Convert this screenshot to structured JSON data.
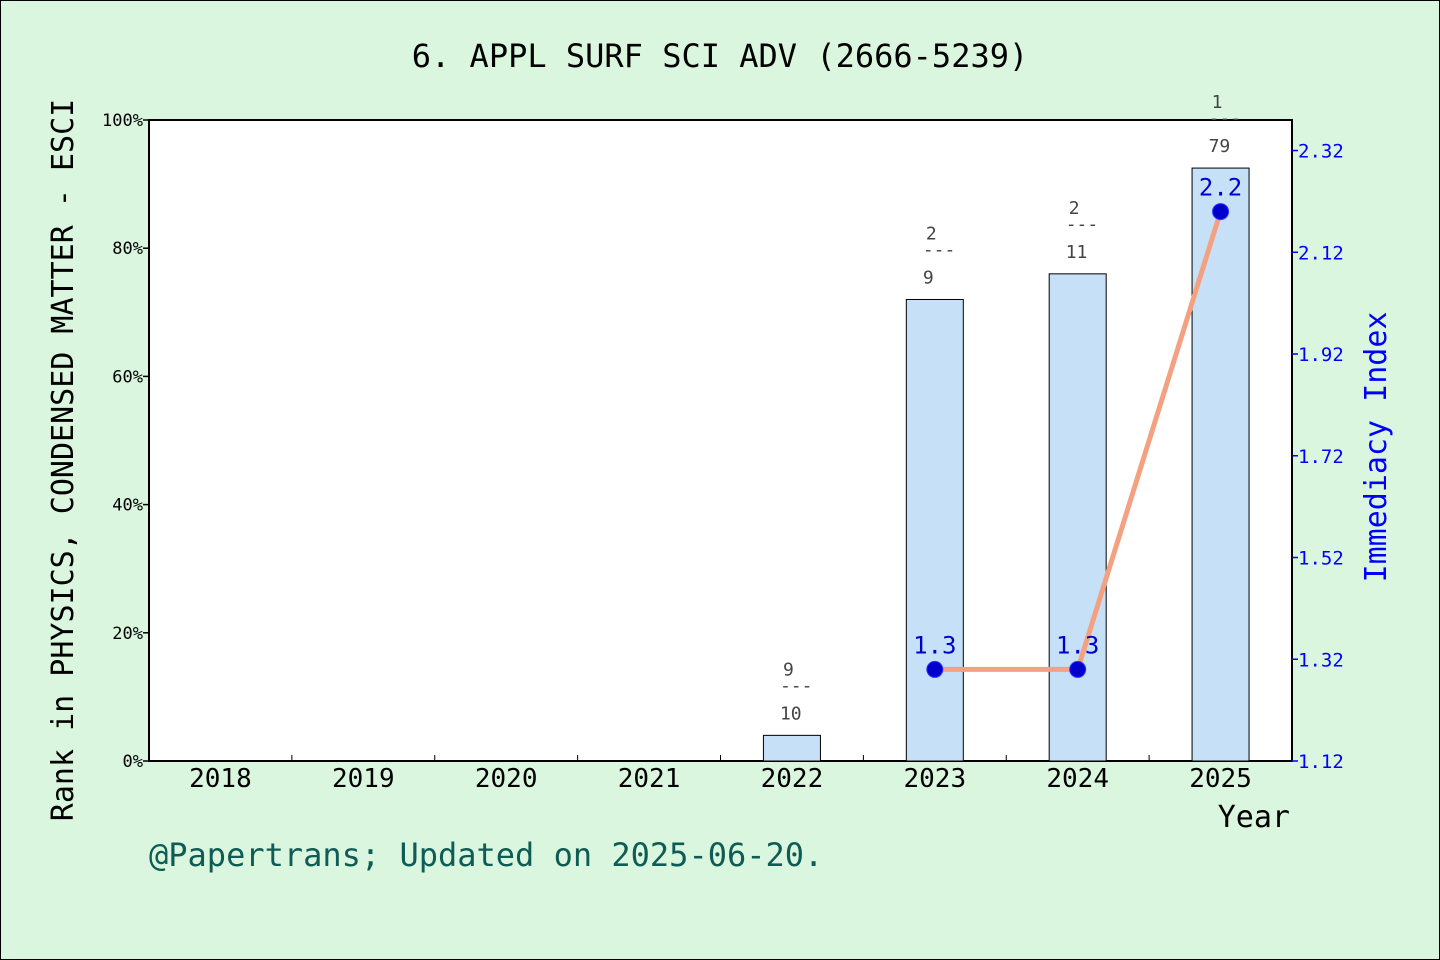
{
  "chart_data": {
    "type": "bar",
    "title": "6. APPL SURF SCI ADV (2666-5239)",
    "xlabel": "Year",
    "ylabel": "Rank in PHYSICS, CONDENSED MATTER - ESCI",
    "y2label": "Immediacy Index",
    "categories": [
      "2018",
      "2019",
      "2020",
      "2021",
      "2022",
      "2023",
      "2024",
      "2025"
    ],
    "ylim": [
      0,
      100
    ],
    "y_ticks": [
      "0%",
      "20%",
      "40%",
      "60%",
      "80%",
      "100%"
    ],
    "y2lim": [
      1.12,
      2.38
    ],
    "y2_ticks": [
      "1.12",
      "1.32",
      "1.52",
      "1.72",
      "1.92",
      "2.12",
      "2.32"
    ],
    "bars": [
      {
        "category": "2022",
        "value": 4,
        "rank": "9",
        "total": "10"
      },
      {
        "category": "2023",
        "value": 72,
        "rank": "2",
        "total": "9"
      },
      {
        "category": "2024",
        "value": 76,
        "rank": "2",
        "total": "11"
      },
      {
        "category": "2025",
        "value": 92.5,
        "rank": "1",
        "total": "79"
      }
    ],
    "line": {
      "points": [
        {
          "category": "2023",
          "value": 1.3,
          "label": "1.3"
        },
        {
          "category": "2024",
          "value": 1.3,
          "label": "1.3"
        },
        {
          "category": "2025",
          "value": 2.2,
          "label": "2.2"
        }
      ]
    },
    "frac_dash": "---",
    "grid": false
  },
  "footer": "@Papertrans; Updated on 2025-06-20.",
  "colors": {
    "background": "#dbf6de",
    "bar_fill": "#c5e0f7",
    "line": "#f4a182",
    "marker": "#0000cc",
    "right_axis": "#0000ff",
    "footer": "#0d5c55"
  }
}
